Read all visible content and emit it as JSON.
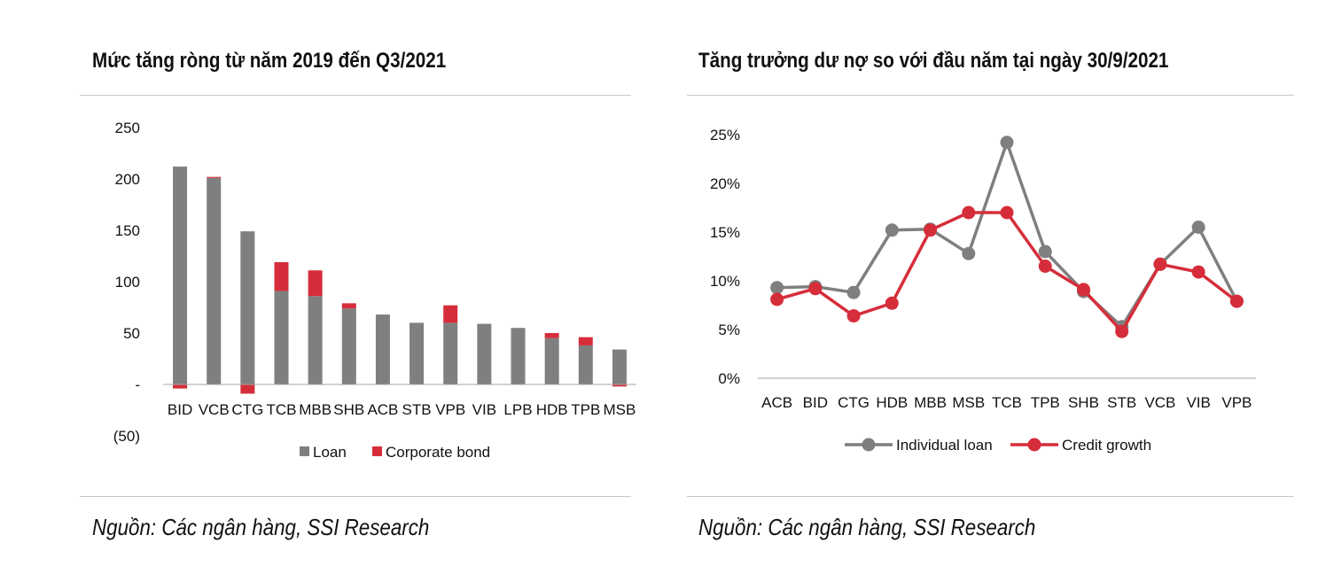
{
  "left": {
    "title": "Mức tăng ròng từ năm 2019 đến Q3/2021",
    "source": "Nguồn: Các ngân hàng, SSI Research"
  },
  "right": {
    "title": "Tăng trưởng dư nợ so với đầu năm tại ngày 30/9/2021",
    "source": "Nguồn: Các ngân hàng, SSI Research"
  },
  "chart_data": [
    {
      "type": "bar",
      "stacked": true,
      "title": "Mức tăng ròng từ năm 2019 đến Q3/2021",
      "categories": [
        "BID",
        "VCB",
        "CTG",
        "TCB",
        "MBB",
        "SHB",
        "ACB",
        "STB",
        "VPB",
        "VIB",
        "LPB",
        "HDB",
        "TPB",
        "MSB"
      ],
      "series": [
        {
          "name": "Loan",
          "color": "#7f7f7f",
          "values": [
            212,
            201,
            149,
            91,
            86,
            74,
            68,
            60,
            60,
            59,
            55,
            45,
            38,
            34
          ]
        },
        {
          "name": "Corporate bond",
          "color": "#d62d3a",
          "values": [
            -4,
            1,
            -9,
            28,
            25,
            5,
            0,
            0,
            17,
            0,
            0,
            5,
            8,
            -2
          ]
        }
      ],
      "yticks": [
        250,
        200,
        150,
        100,
        50,
        0,
        -50
      ],
      "ytick_labels": [
        "250",
        "200",
        "150",
        "100",
        "50",
        "-",
        "(50)"
      ],
      "ylim": [
        -50,
        250
      ],
      "legend": "bottom"
    },
    {
      "type": "line",
      "title": "Tăng trưởng dư nợ so với đầu năm tại ngày 30/9/2021",
      "categories": [
        "ACB",
        "BID",
        "CTG",
        "HDB",
        "MBB",
        "MSB",
        "TCB",
        "TPB",
        "SHB",
        "STB",
        "VCB",
        "VIB",
        "VPB"
      ],
      "series": [
        {
          "name": "Individual loan",
          "color": "#7f7f7f",
          "values": [
            9.3,
            9.4,
            8.8,
            15.2,
            15.3,
            12.8,
            24.2,
            13.0,
            8.9,
            5.3,
            11.7,
            15.5,
            7.9
          ]
        },
        {
          "name": "Credit growth",
          "color": "#d62d3a",
          "values": [
            8.1,
            9.2,
            6.4,
            7.7,
            15.2,
            17.0,
            17.0,
            11.5,
            9.1,
            4.8,
            11.7,
            10.9,
            7.9
          ]
        }
      ],
      "yticks": [
        0,
        5,
        10,
        15,
        20,
        25
      ],
      "ytick_labels": [
        "0%",
        "5%",
        "10%",
        "15%",
        "20%",
        "25%"
      ],
      "ylim": [
        0,
        25
      ],
      "legend": "bottom"
    }
  ]
}
